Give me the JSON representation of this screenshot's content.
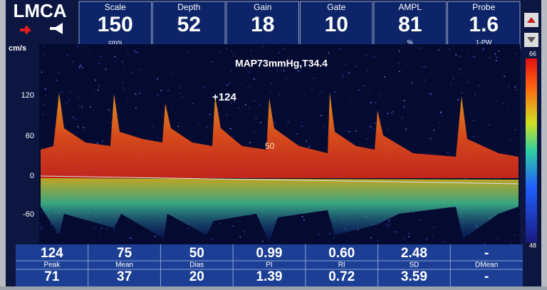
{
  "header": {
    "vessel": "LMCA",
    "params": [
      {
        "label": "Scale",
        "value": "150",
        "unit": "cm/s"
      },
      {
        "label": "Depth",
        "value": "52"
      },
      {
        "label": "Gain",
        "value": "18"
      },
      {
        "label": "Gate",
        "value": "10"
      },
      {
        "label": "AMPL",
        "value": "81",
        "unit": "%"
      },
      {
        "label": "Probe",
        "value": "1.6",
        "unit": "1-PW"
      }
    ]
  },
  "spectrum": {
    "unit": "cm/s",
    "yticks": [
      "120",
      "60",
      "0",
      "-60"
    ],
    "annotation": "MAP73mmHg,T34.4",
    "peak_marker": "+124",
    "dias_marker": "50",
    "scale_top": "66",
    "scale_bottom": "48"
  },
  "table": {
    "labels": [
      "Peak",
      "Mean",
      "Dias",
      "PI",
      "RI",
      "SD",
      "DMean"
    ],
    "rows": [
      [
        "124",
        "75",
        "50",
        "0.99",
        "0.60",
        "2.48",
        "-"
      ],
      [
        "71",
        "37",
        "20",
        "1.39",
        "0.72",
        "3.59",
        "-"
      ]
    ]
  }
}
